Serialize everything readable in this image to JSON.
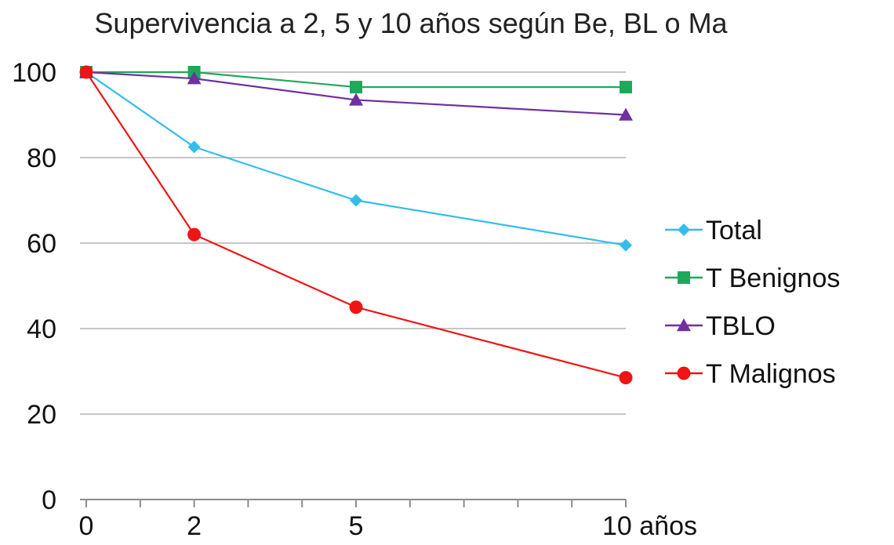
{
  "chart_data": {
    "type": "line",
    "title": "Supervivencia a 2, 5 y 10 años según Be, BL o Ma",
    "x": [
      0,
      2,
      5,
      10
    ],
    "x_tick_labels": [
      "0",
      "2",
      "5",
      "10 años"
    ],
    "xlim": [
      0,
      10
    ],
    "ylim": [
      0,
      100
    ],
    "y_ticks": [
      0,
      20,
      40,
      60,
      80,
      100
    ],
    "grid": "horizontal",
    "legend_position": "right",
    "series": [
      {
        "name": "Total",
        "values": [
          100,
          82.5,
          70,
          59.5
        ],
        "color": "#33bdec",
        "marker": "diamond"
      },
      {
        "name": "T Benignos",
        "values": [
          100,
          100,
          96.5,
          96.5
        ],
        "color": "#1ea85a",
        "marker": "square"
      },
      {
        "name": "TBLO",
        "values": [
          100,
          98.5,
          93.5,
          90
        ],
        "color": "#7030a0",
        "marker": "triangle"
      },
      {
        "name": "T Malignos",
        "values": [
          100,
          62,
          45,
          28.5
        ],
        "color": "#f01414",
        "marker": "circle"
      }
    ]
  }
}
